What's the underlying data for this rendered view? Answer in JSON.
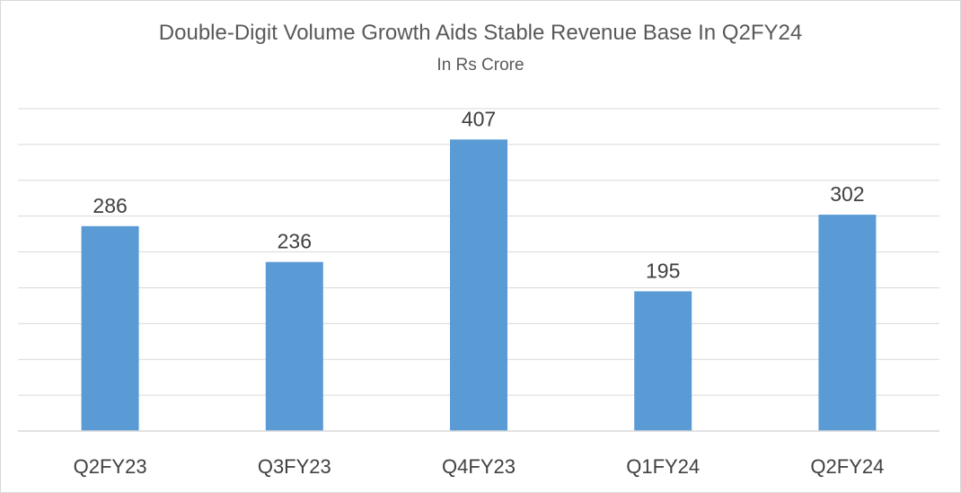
{
  "chart_data": {
    "type": "bar",
    "title": "Double-Digit Volume Growth Aids Stable Revenue Base In Q2FY24",
    "subtitle": "In Rs Crore",
    "categories": [
      "Q2FY23",
      "Q3FY23",
      "Q4FY23",
      "Q1FY24",
      "Q2FY24"
    ],
    "values": [
      286,
      236,
      407,
      195,
      302
    ],
    "xlabel": "",
    "ylabel": "",
    "ylim": [
      0,
      450
    ],
    "grid": true,
    "legend": "none",
    "colors": {
      "bar": "#5B9BD5",
      "grid": "#d9d9d9",
      "text": "#404040",
      "title": "#595959"
    }
  }
}
